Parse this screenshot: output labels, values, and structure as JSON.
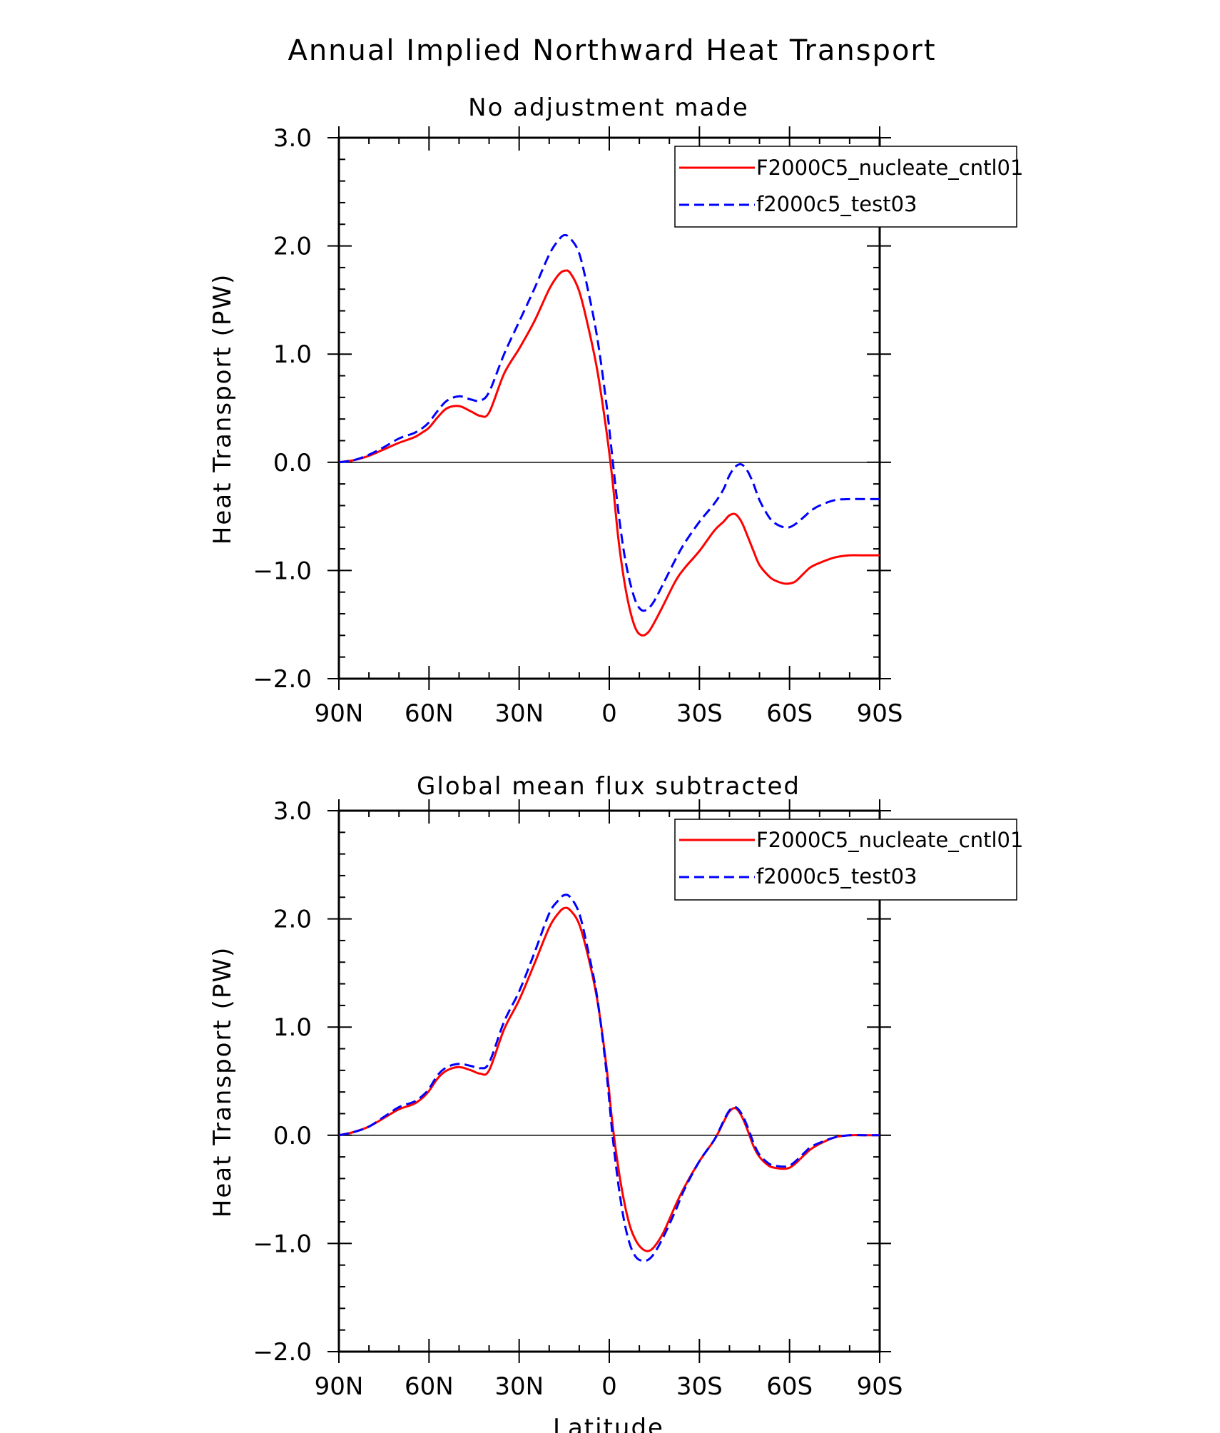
{
  "figure": {
    "title": "Annual Implied Northward Heat Transport",
    "xlabel": "Latitude"
  },
  "chart_data": [
    {
      "type": "line",
      "title": "No adjustment made",
      "xlabel": "",
      "ylabel": "Heat Transport (PW)",
      "xlim": [
        90,
        -90
      ],
      "ylim": [
        -2.0,
        3.0
      ],
      "xticks": [
        90,
        60,
        30,
        0,
        -30,
        -60,
        -90
      ],
      "xtick_labels": [
        "90N",
        "60N",
        "30N",
        "0",
        "30S",
        "60S",
        "90S"
      ],
      "yticks": [
        -2.0,
        -1.0,
        0.0,
        1.0,
        2.0,
        3.0
      ],
      "ytick_labels": [
        "−2.0",
        "−1.0",
        "0.0",
        "1.0",
        "2.0",
        "3.0"
      ],
      "zero_line": true,
      "grid": false,
      "legend_position": "top-right",
      "series": [
        {
          "name": "F2000C5_nucleate_cntl01",
          "color": "#ff0000",
          "dash": "solid",
          "x": [
            90,
            85,
            80,
            75,
            70,
            65,
            62,
            60,
            57,
            54,
            50,
            46,
            43,
            40,
            35,
            30,
            25,
            20,
            17,
            15,
            13,
            10,
            7,
            4,
            1,
            -1,
            -3,
            -5,
            -7,
            -9,
            -11,
            -13,
            -15,
            -18,
            -22,
            -25,
            -30,
            -35,
            -38,
            -40,
            -42,
            -44,
            -46,
            -48,
            -50,
            -53,
            -55,
            -58,
            -60,
            -62,
            -65,
            -67,
            -70,
            -75,
            -80,
            -85,
            -90
          ],
          "y": [
            0.0,
            0.02,
            0.06,
            0.12,
            0.18,
            0.23,
            0.28,
            0.32,
            0.42,
            0.5,
            0.52,
            0.47,
            0.43,
            0.46,
            0.82,
            1.05,
            1.3,
            1.6,
            1.73,
            1.77,
            1.75,
            1.58,
            1.25,
            0.85,
            0.3,
            -0.15,
            -0.7,
            -1.1,
            -1.38,
            -1.55,
            -1.6,
            -1.57,
            -1.48,
            -1.32,
            -1.1,
            -0.98,
            -0.82,
            -0.63,
            -0.55,
            -0.49,
            -0.48,
            -0.55,
            -0.68,
            -0.82,
            -0.95,
            -1.05,
            -1.09,
            -1.12,
            -1.12,
            -1.1,
            -1.02,
            -0.97,
            -0.93,
            -0.88,
            -0.86,
            -0.86,
            -0.86
          ]
        },
        {
          "name": "f2000c5_test03",
          "color": "#0000ff",
          "dash": "dashed",
          "x": [
            90,
            85,
            80,
            75,
            70,
            65,
            62,
            60,
            57,
            54,
            50,
            46,
            43,
            40,
            35,
            30,
            25,
            20,
            17,
            15,
            13,
            10,
            7,
            4,
            1,
            -1,
            -3,
            -5,
            -7,
            -9,
            -11,
            -13,
            -15,
            -18,
            -22,
            -25,
            -30,
            -35,
            -38,
            -40,
            -42,
            -44,
            -46,
            -48,
            -50,
            -53,
            -55,
            -58,
            -60,
            -62,
            -65,
            -67,
            -70,
            -75,
            -80,
            -85,
            -90
          ],
          "y": [
            0.0,
            0.02,
            0.07,
            0.14,
            0.22,
            0.27,
            0.32,
            0.37,
            0.48,
            0.57,
            0.61,
            0.58,
            0.57,
            0.65,
            1.0,
            1.3,
            1.6,
            1.92,
            2.05,
            2.1,
            2.07,
            1.93,
            1.58,
            1.15,
            0.55,
            0.05,
            -0.45,
            -0.85,
            -1.12,
            -1.3,
            -1.37,
            -1.35,
            -1.28,
            -1.12,
            -0.9,
            -0.75,
            -0.55,
            -0.38,
            -0.25,
            -0.12,
            -0.04,
            -0.02,
            -0.08,
            -0.2,
            -0.35,
            -0.5,
            -0.56,
            -0.6,
            -0.6,
            -0.57,
            -0.5,
            -0.45,
            -0.4,
            -0.35,
            -0.34,
            -0.34,
            -0.34
          ]
        }
      ]
    },
    {
      "type": "line",
      "title": "Global mean flux subtracted",
      "xlabel": "Latitude",
      "ylabel": "Heat Transport (PW)",
      "xlim": [
        90,
        -90
      ],
      "ylim": [
        -2.0,
        3.0
      ],
      "xticks": [
        90,
        60,
        30,
        0,
        -30,
        -60,
        -90
      ],
      "xtick_labels": [
        "90N",
        "60N",
        "30N",
        "0",
        "30S",
        "60S",
        "90S"
      ],
      "yticks": [
        -2.0,
        -1.0,
        0.0,
        1.0,
        2.0,
        3.0
      ],
      "ytick_labels": [
        "−2.0",
        "−1.0",
        "0.0",
        "1.0",
        "2.0",
        "3.0"
      ],
      "zero_line": true,
      "grid": false,
      "legend_position": "top-right",
      "series": [
        {
          "name": "F2000C5_nucleate_cntl01",
          "color": "#ff0000",
          "dash": "solid",
          "x": [
            90,
            85,
            80,
            75,
            70,
            65,
            62,
            60,
            57,
            54,
            50,
            46,
            43,
            40,
            35,
            30,
            25,
            20,
            17,
            15,
            13,
            10,
            7,
            4,
            1,
            -1,
            -3,
            -5,
            -7,
            -9,
            -11,
            -13,
            -15,
            -18,
            -22,
            -25,
            -30,
            -35,
            -38,
            -40,
            -42,
            -44,
            -46,
            -48,
            -50,
            -53,
            -55,
            -58,
            -60,
            -62,
            -65,
            -67,
            -70,
            -75,
            -80,
            -85,
            -90
          ],
          "y": [
            0.0,
            0.03,
            0.08,
            0.16,
            0.24,
            0.29,
            0.35,
            0.41,
            0.53,
            0.6,
            0.63,
            0.6,
            0.57,
            0.6,
            0.98,
            1.25,
            1.58,
            1.92,
            2.05,
            2.1,
            2.08,
            1.95,
            1.65,
            1.25,
            0.65,
            0.12,
            -0.3,
            -0.62,
            -0.85,
            -0.98,
            -1.05,
            -1.07,
            -1.03,
            -0.9,
            -0.65,
            -0.48,
            -0.24,
            -0.04,
            0.12,
            0.22,
            0.25,
            0.18,
            0.05,
            -0.1,
            -0.2,
            -0.28,
            -0.3,
            -0.31,
            -0.3,
            -0.26,
            -0.18,
            -0.13,
            -0.08,
            -0.02,
            0.0,
            0.0,
            0.0
          ]
        },
        {
          "name": "f2000c5_test03",
          "color": "#0000ff",
          "dash": "dashed",
          "x": [
            90,
            85,
            80,
            75,
            70,
            65,
            62,
            60,
            57,
            54,
            50,
            46,
            43,
            40,
            35,
            30,
            25,
            20,
            17,
            15,
            13,
            10,
            7,
            4,
            1,
            -1,
            -3,
            -5,
            -7,
            -9,
            -11,
            -13,
            -15,
            -18,
            -22,
            -25,
            -30,
            -35,
            -38,
            -40,
            -42,
            -44,
            -46,
            -48,
            -50,
            -53,
            -55,
            -58,
            -60,
            -62,
            -65,
            -67,
            -70,
            -75,
            -80,
            -85,
            -90
          ],
          "y": [
            0.0,
            0.03,
            0.08,
            0.17,
            0.26,
            0.31,
            0.37,
            0.43,
            0.56,
            0.63,
            0.66,
            0.64,
            0.62,
            0.67,
            1.05,
            1.33,
            1.68,
            2.05,
            2.17,
            2.22,
            2.2,
            2.05,
            1.7,
            1.27,
            0.6,
            0.02,
            -0.45,
            -0.8,
            -1.02,
            -1.13,
            -1.16,
            -1.15,
            -1.09,
            -0.94,
            -0.7,
            -0.5,
            -0.24,
            -0.04,
            0.13,
            0.23,
            0.26,
            0.2,
            0.08,
            -0.07,
            -0.18,
            -0.26,
            -0.28,
            -0.29,
            -0.28,
            -0.24,
            -0.16,
            -0.11,
            -0.07,
            -0.02,
            0.0,
            0.0,
            0.0
          ]
        }
      ]
    }
  ]
}
